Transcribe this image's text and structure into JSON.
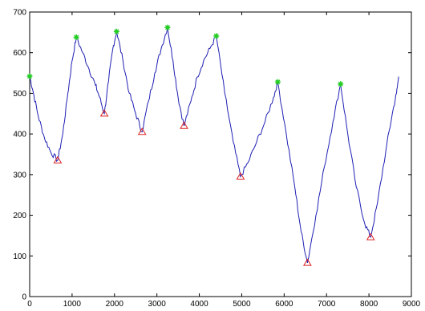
{
  "chart_data": {
    "type": "line",
    "title": "",
    "xlabel": "",
    "ylabel": "",
    "xlim": [
      0,
      9000
    ],
    "ylim": [
      0,
      700
    ],
    "xticks": [
      0,
      1000,
      2000,
      3000,
      4000,
      5000,
      6000,
      7000,
      8000,
      9000
    ],
    "yticks": [
      0,
      100,
      200,
      300,
      400,
      500,
      600,
      700
    ],
    "grid": false,
    "legend": "none",
    "colors": {
      "line": "#1f1fb4",
      "peak": "#22cc22",
      "trough": "#dd2222",
      "axis": "#000000"
    },
    "series": [
      {
        "values": [
          [
            0,
            542
          ],
          [
            80,
            505
          ],
          [
            200,
            445
          ],
          [
            350,
            390
          ],
          [
            500,
            355
          ],
          [
            660,
            335
          ],
          [
            780,
            400
          ],
          [
            900,
            500
          ],
          [
            1000,
            580
          ],
          [
            1100,
            638
          ],
          [
            1250,
            600
          ],
          [
            1400,
            560
          ],
          [
            1550,
            520
          ],
          [
            1650,
            490
          ],
          [
            1760,
            450
          ],
          [
            1860,
            530
          ],
          [
            1960,
            610
          ],
          [
            2050,
            652
          ],
          [
            2200,
            580
          ],
          [
            2350,
            500
          ],
          [
            2500,
            450
          ],
          [
            2650,
            405
          ],
          [
            2800,
            480
          ],
          [
            2950,
            550
          ],
          [
            3100,
            610
          ],
          [
            3250,
            662
          ],
          [
            3380,
            580
          ],
          [
            3500,
            490
          ],
          [
            3640,
            420
          ],
          [
            3800,
            480
          ],
          [
            3950,
            540
          ],
          [
            4100,
            580
          ],
          [
            4250,
            610
          ],
          [
            4400,
            641
          ],
          [
            4600,
            500
          ],
          [
            4800,
            380
          ],
          [
            4970,
            295
          ],
          [
            5150,
            330
          ],
          [
            5350,
            380
          ],
          [
            5550,
            430
          ],
          [
            5750,
            490
          ],
          [
            5850,
            528
          ],
          [
            6050,
            400
          ],
          [
            6250,
            270
          ],
          [
            6400,
            160
          ],
          [
            6550,
            83
          ],
          [
            6750,
            200
          ],
          [
            6950,
            320
          ],
          [
            7150,
            430
          ],
          [
            7330,
            523
          ],
          [
            7500,
            400
          ],
          [
            7700,
            270
          ],
          [
            7900,
            180
          ],
          [
            8040,
            146
          ],
          [
            8200,
            230
          ],
          [
            8400,
            360
          ],
          [
            8550,
            450
          ],
          [
            8650,
            500
          ],
          [
            8700,
            541
          ]
        ]
      }
    ],
    "peaks": [
      [
        0,
        542
      ],
      [
        1100,
        638
      ],
      [
        2050,
        652
      ],
      [
        3250,
        662
      ],
      [
        4400,
        641
      ],
      [
        5850,
        528
      ],
      [
        7330,
        523
      ]
    ],
    "troughs": [
      [
        660,
        335
      ],
      [
        1760,
        450
      ],
      [
        2650,
        405
      ],
      [
        3640,
        420
      ],
      [
        4970,
        295
      ],
      [
        6550,
        83
      ],
      [
        8040,
        146
      ]
    ]
  }
}
